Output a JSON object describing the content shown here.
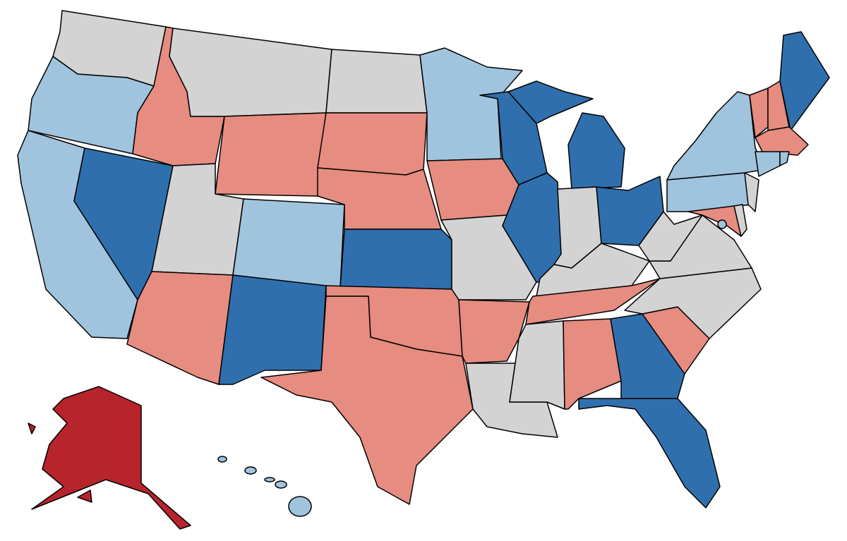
{
  "palette": [
    "#d3d3d3",
    "#a0c4de",
    "#306fad",
    "#e68c80",
    "#b8242b"
  ]
}
